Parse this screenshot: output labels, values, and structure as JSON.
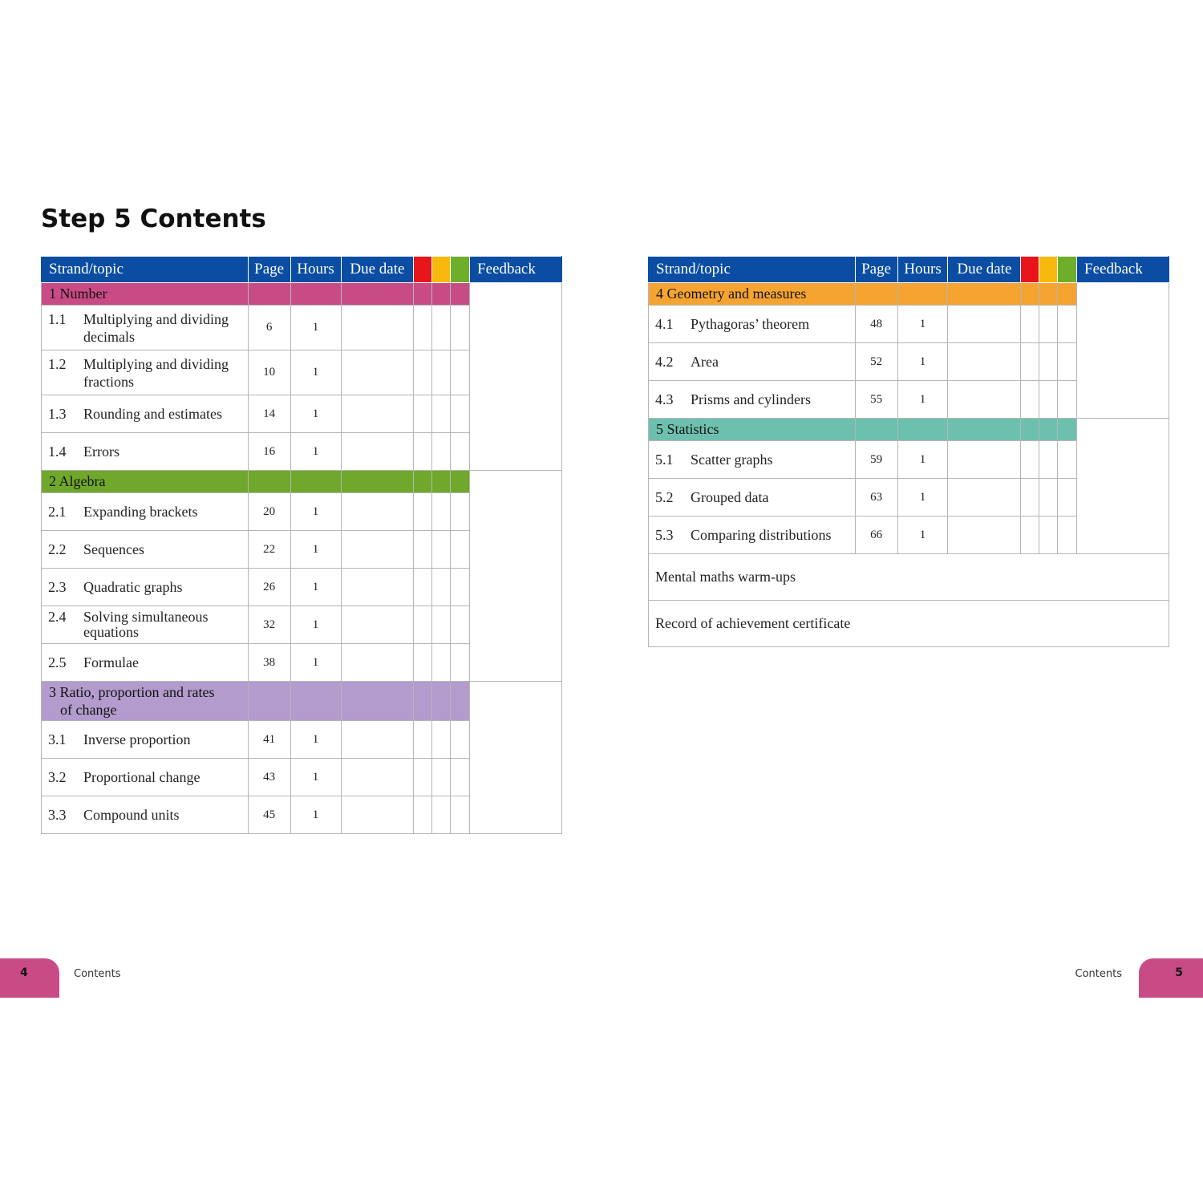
{
  "title": "Step 5 Contents",
  "headers": {
    "topic": "Strand/topic",
    "page": "Page",
    "hours": "Hours",
    "due": "Due date",
    "feedback": "Feedback"
  },
  "colors": {
    "red": "#e8151b",
    "amber": "#f7b90e",
    "green": "#6fae2b",
    "header": "#0a4da2",
    "number": "#c94b86",
    "algebra": "#6fa82a",
    "ratio": "#b39bcd",
    "geometry": "#f5a431",
    "statistics": "#6ec0ae"
  },
  "left": {
    "s1": {
      "label": "1 Number",
      "topics": [
        {
          "num": "1.1",
          "line1": "Multiplying and dividing",
          "line2": "decimals",
          "page": "6",
          "hours": "1"
        },
        {
          "num": "1.2",
          "line1": "Multiplying and dividing",
          "line2": "fractions",
          "page": "10",
          "hours": "1"
        },
        {
          "num": "1.3",
          "name": "Rounding and estimates",
          "page": "14",
          "hours": "1"
        },
        {
          "num": "1.4",
          "name": "Errors",
          "page": "16",
          "hours": "1"
        }
      ]
    },
    "s2": {
      "label": "2 Algebra",
      "topics": [
        {
          "num": "2.1",
          "name": "Expanding brackets",
          "page": "20",
          "hours": "1"
        },
        {
          "num": "2.2",
          "name": "Sequences",
          "page": "22",
          "hours": "1"
        },
        {
          "num": "2.3",
          "name": "Quadratic graphs",
          "page": "26",
          "hours": "1"
        },
        {
          "num": "2.4",
          "line1": "Solving simultaneous",
          "line2": "equations",
          "page": "32",
          "hours": "1"
        },
        {
          "num": "2.5",
          "name": "Formulae",
          "page": "38",
          "hours": "1"
        }
      ]
    },
    "s3": {
      "label1": "3 Ratio, proportion and rates",
      "label2": "of change",
      "topics": [
        {
          "num": "3.1",
          "name": "Inverse proportion",
          "page": "41",
          "hours": "1"
        },
        {
          "num": "3.2",
          "name": "Proportional change",
          "page": "43",
          "hours": "1"
        },
        {
          "num": "3.3",
          "name": "Compound units",
          "page": "45",
          "hours": "1"
        }
      ]
    }
  },
  "right": {
    "s4": {
      "label": "4 Geometry and measures",
      "topics": [
        {
          "num": "4.1",
          "name": "Pythagoras’ theorem",
          "page": "48",
          "hours": "1"
        },
        {
          "num": "4.2",
          "name": "Area",
          "page": "52",
          "hours": "1"
        },
        {
          "num": "4.3",
          "name": "Prisms and cylinders",
          "page": "55",
          "hours": "1"
        }
      ]
    },
    "s5": {
      "label": "5 Statistics",
      "topics": [
        {
          "num": "5.1",
          "name": "Scatter graphs",
          "page": "59",
          "hours": "1"
        },
        {
          "num": "5.2",
          "name": "Grouped data",
          "page": "63",
          "hours": "1"
        },
        {
          "num": "5.3",
          "name": "Comparing distributions",
          "page": "66",
          "hours": "1"
        }
      ]
    },
    "extras": [
      "Mental maths warm-ups",
      "Record of achievement certificate"
    ]
  },
  "footer": {
    "left_page": "4",
    "right_page": "5",
    "left_label": "Contents",
    "right_label": "Contents"
  }
}
